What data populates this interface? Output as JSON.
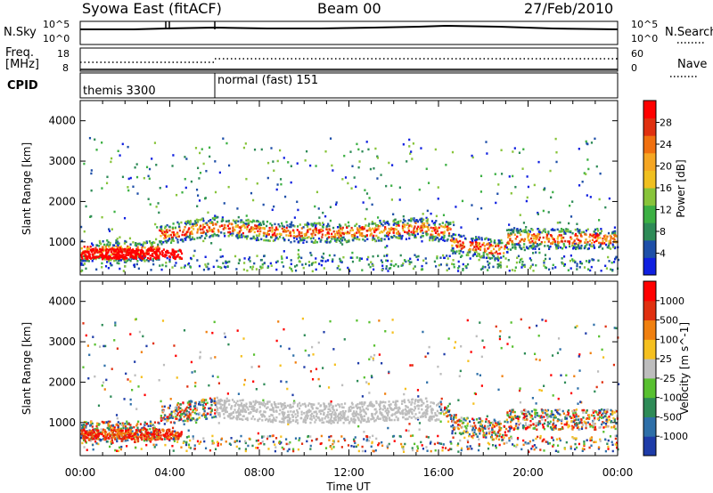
{
  "header": {
    "station": "Syowa East (fitACF)",
    "beam": "Beam 00",
    "date": "27/Feb/2010"
  },
  "noise_panel": {
    "left_label": "N.Sky",
    "left_tick_hi": "10^5",
    "left_tick_lo": "10^0",
    "right_label": "N.Search",
    "right_tick_hi": "10^5",
    "right_tick_lo": "10^0"
  },
  "freq_panel": {
    "left_label_1": "Freq.",
    "left_label_2": "[MHz]",
    "left_tick_hi": "18",
    "left_tick_lo": "8",
    "right_label": "Nave",
    "right_tick_hi": "60",
    "right_tick_lo": "0"
  },
  "cpid_panel": {
    "label": "CPID",
    "modes": [
      {
        "name": "themis 3300",
        "start_hour": 0
      },
      {
        "name": "normal (fast) 151",
        "start_hour": 6
      }
    ]
  },
  "chart_data": [
    {
      "type": "heatmap",
      "panel": "power",
      "ylabel": "Slant Range [km]",
      "y_ticks": [
        "1000",
        "2000",
        "3000",
        "4000"
      ],
      "ylim": [
        180,
        4500
      ],
      "colorbar": {
        "label": "Power [dB]",
        "ticks": [
          "4",
          "8",
          "12",
          "16",
          "20",
          "24",
          "28"
        ],
        "colors": [
          "#1020e0",
          "#1e4fa8",
          "#2e8b57",
          "#3cb043",
          "#88c43a",
          "#f0c020",
          "#f5a623",
          "#f07010",
          "#e03010",
          "#ff0000"
        ]
      }
    },
    {
      "type": "heatmap",
      "panel": "velocity",
      "ylabel": "Slant Range [km]",
      "y_ticks": [
        "1000",
        "2000",
        "3000",
        "4000"
      ],
      "ylim": [
        180,
        4500
      ],
      "colorbar": {
        "label": "Velocity [m s^-1]",
        "ticks": [
          "1000",
          "500",
          "100",
          "25",
          "-25",
          "-100",
          "-500",
          "-1000"
        ],
        "colors": [
          "#1e3ca8",
          "#2e6fa8",
          "#2e8b57",
          "#58c030",
          "#bdbdbd",
          "#f5c020",
          "#f08010",
          "#e03010",
          "#ff0000"
        ]
      }
    }
  ],
  "x_axis": {
    "label": "Time UT",
    "ticks": [
      "00:00",
      "04:00",
      "08:00",
      "12:00",
      "16:00",
      "20:00",
      "00:00"
    ]
  }
}
